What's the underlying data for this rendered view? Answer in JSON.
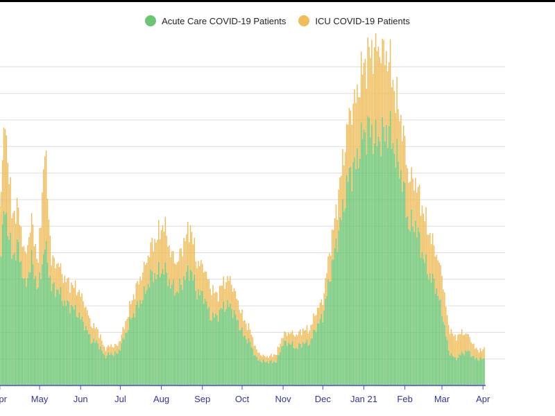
{
  "colors": {
    "acute": "#6cc572",
    "icu": "#f0bd5a",
    "grid": "#dddddd",
    "axis": "#4a4ad8",
    "tick_text": "#333399"
  },
  "legend": [
    {
      "label": "Acute Care COVID-19 Patients",
      "color": "#6cc572"
    },
    {
      "label": "ICU COVID-19 Patients",
      "color": "#f0bd5a"
    }
  ],
  "chart_data": {
    "type": "bar",
    "stacked": true,
    "grid": true,
    "legend_position": "top-center",
    "x_tick_labels": [
      "Apr",
      "May",
      "Jun",
      "Jul",
      "Aug",
      "Sep",
      "Oct",
      "Nov",
      "Dec",
      "Jan 21",
      "Feb",
      "Mar",
      "Apr"
    ],
    "ylim": [
      0,
      13
    ],
    "y_gridlines": [
      1,
      2,
      3,
      4,
      5,
      6,
      7,
      8,
      9,
      10,
      11,
      12
    ],
    "x": [
      "2020-03-31",
      "2020-04-05",
      "2020-04-10",
      "2020-04-15",
      "2020-04-20",
      "2020-04-25",
      "2020-04-30",
      "2020-05-05",
      "2020-05-10",
      "2020-05-15",
      "2020-05-20",
      "2020-05-25",
      "2020-05-30",
      "2020-06-04",
      "2020-06-09",
      "2020-06-14",
      "2020-06-19",
      "2020-06-24",
      "2020-06-29",
      "2020-07-04",
      "2020-07-09",
      "2020-07-14",
      "2020-07-19",
      "2020-07-24",
      "2020-07-29",
      "2020-08-03",
      "2020-08-08",
      "2020-08-13",
      "2020-08-18",
      "2020-08-23",
      "2020-08-28",
      "2020-09-02",
      "2020-09-07",
      "2020-09-12",
      "2020-09-17",
      "2020-09-22",
      "2020-09-27",
      "2020-10-02",
      "2020-10-07",
      "2020-10-12",
      "2020-10-17",
      "2020-10-22",
      "2020-10-27",
      "2020-11-01",
      "2020-11-06",
      "2020-11-11",
      "2020-11-16",
      "2020-11-21",
      "2020-11-26",
      "2020-12-01",
      "2020-12-06",
      "2020-12-11",
      "2020-12-16",
      "2020-12-21",
      "2020-12-26",
      "2020-12-31",
      "2021-01-05",
      "2021-01-10",
      "2021-01-15",
      "2021-01-20",
      "2021-01-25",
      "2021-01-30",
      "2021-02-04",
      "2021-02-09",
      "2021-02-14",
      "2021-02-19",
      "2021-02-24",
      "2021-03-01",
      "2021-03-06",
      "2021-03-11",
      "2021-03-16",
      "2021-03-21",
      "2021-03-26",
      "2021-03-31",
      "2021-04-02"
    ],
    "series": [
      {
        "name": "Acute Care COVID-19 Patients",
        "values": [
          4.4,
          6.7,
          4.9,
          5.2,
          3.7,
          4.7,
          3.6,
          5.3,
          3.7,
          3.6,
          3.1,
          3.0,
          2.7,
          2.3,
          1.7,
          1.6,
          1.1,
          1.2,
          1.2,
          1.8,
          2.5,
          3.0,
          3.4,
          4.1,
          4.2,
          4.4,
          3.8,
          3.5,
          4.0,
          4.4,
          3.5,
          3.4,
          2.6,
          2.6,
          3.0,
          3.0,
          2.5,
          1.9,
          1.6,
          1.0,
          0.9,
          0.9,
          0.9,
          1.6,
          1.6,
          1.4,
          1.6,
          1.6,
          2.2,
          2.6,
          4.0,
          5.3,
          6.6,
          8.0,
          8.3,
          9.4,
          9.7,
          9.2,
          9.4,
          9.7,
          8.7,
          7.8,
          6.0,
          6.1,
          5.0,
          4.2,
          3.8,
          2.8,
          1.3,
          1.0,
          1.2,
          1.3,
          1.0,
          1.0,
          1.0
        ]
      },
      {
        "name": "ICU COVID-19 Patients",
        "values": [
          1.6,
          3.3,
          1.6,
          1.4,
          1.1,
          1.5,
          1.0,
          3.7,
          1.0,
          1.0,
          0.9,
          0.8,
          0.9,
          0.8,
          0.6,
          0.5,
          0.3,
          0.3,
          0.3,
          0.4,
          0.6,
          0.8,
          1.0,
          1.1,
          1.4,
          1.7,
          1.2,
          1.1,
          1.4,
          1.6,
          1.1,
          1.1,
          1.1,
          0.8,
          0.9,
          1.0,
          0.8,
          0.6,
          0.5,
          0.3,
          0.2,
          0.2,
          0.3,
          0.3,
          0.4,
          0.5,
          0.5,
          0.5,
          0.6,
          0.6,
          1.0,
          1.2,
          1.8,
          2.2,
          2.5,
          2.5,
          2.8,
          3.5,
          3.2,
          2.6,
          2.2,
          2.0,
          1.8,
          1.6,
          1.7,
          1.6,
          1.3,
          1.4,
          0.9,
          0.8,
          0.8,
          0.6,
          0.4,
          0.3,
          0.4
        ]
      }
    ]
  }
}
